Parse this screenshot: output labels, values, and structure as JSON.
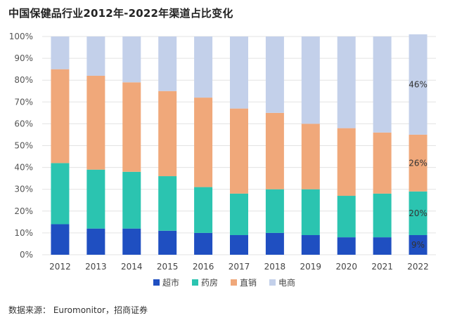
{
  "title": "中国保健品行业2012年-2022年渠道占比变化",
  "source": "数据来源：   Euromonitor，招商证券",
  "chart_data": {
    "type": "bar",
    "stacked": true,
    "title": "中国保健品行业2012年-2022年渠道占比变化",
    "categories": [
      "2012",
      "2013",
      "2014",
      "2015",
      "2016",
      "2017",
      "2018",
      "2019",
      "2020",
      "2021",
      "2022"
    ],
    "series": [
      {
        "name": "超市",
        "color": "#1f4fc1",
        "values": [
          14,
          12,
          12,
          11,
          10,
          9,
          10,
          9,
          8,
          8,
          9
        ]
      },
      {
        "name": "药房",
        "color": "#2bc4b0",
        "values": [
          28,
          27,
          26,
          25,
          21,
          19,
          20,
          21,
          19,
          20,
          20
        ]
      },
      {
        "name": "直销",
        "color": "#f0a87a",
        "values": [
          43,
          43,
          41,
          39,
          41,
          39,
          35,
          30,
          31,
          28,
          26
        ]
      },
      {
        "name": "电商",
        "color": "#c3d0ea",
        "values": [
          15,
          18,
          21,
          25,
          28,
          33,
          35,
          40,
          42,
          44,
          46
        ]
      }
    ],
    "data_labels": [
      {
        "category": "2022",
        "series": "超市",
        "text": "9%"
      },
      {
        "category": "2022",
        "series": "药房",
        "text": "20%"
      },
      {
        "category": "2022",
        "series": "直销",
        "text": "26%"
      },
      {
        "category": "2022",
        "series": "电商",
        "text": "46%"
      }
    ],
    "ylim": [
      0,
      100
    ],
    "yticks": [
      "0%",
      "10%",
      "20%",
      "30%",
      "40%",
      "50%",
      "60%",
      "70%",
      "80%",
      "90%",
      "100%"
    ],
    "grid": true,
    "legend": "bottom"
  }
}
